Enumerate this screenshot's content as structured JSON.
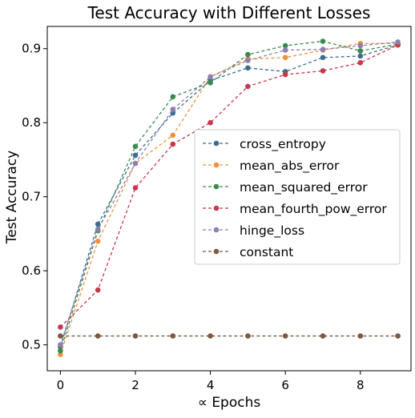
{
  "chart_data": {
    "type": "line",
    "title": "Test Accuracy with Different Losses",
    "xlabel": "∝ Epochs",
    "ylabel": "Test Accuracy",
    "xlim": [
      -0.35,
      9.35
    ],
    "ylim": [
      0.465,
      0.93
    ],
    "xticks": [
      0,
      2,
      4,
      6,
      8
    ],
    "yticks": [
      0.5,
      0.6,
      0.7,
      0.8,
      0.9
    ],
    "grid": false,
    "legend_position": "center-right",
    "x": [
      0,
      1,
      2,
      3,
      4,
      5,
      6,
      7,
      8,
      9
    ],
    "series": [
      {
        "name": "cross_entropy",
        "color": "#3c6e91",
        "values": [
          0.497,
          0.663,
          0.756,
          0.813,
          0.857,
          0.874,
          0.869,
          0.888,
          0.89,
          0.905
        ]
      },
      {
        "name": "mean_abs_error",
        "color": "#f0923c",
        "values": [
          0.487,
          0.64,
          0.745,
          0.783,
          0.862,
          0.886,
          0.888,
          0.898,
          0.907,
          0.907
        ]
      },
      {
        "name": "mean_squared_error",
        "color": "#3a8a4e",
        "values": [
          0.492,
          0.654,
          0.768,
          0.835,
          0.854,
          0.892,
          0.904,
          0.91,
          0.897,
          0.906
        ]
      },
      {
        "name": "mean_fourth_pow_error",
        "color": "#c43a4c",
        "values": [
          0.524,
          0.574,
          0.712,
          0.771,
          0.8,
          0.849,
          0.865,
          0.87,
          0.881,
          0.905
        ]
      },
      {
        "name": "hinge_loss",
        "color": "#8e7fb3",
        "values": [
          0.5,
          0.656,
          0.745,
          0.818,
          0.862,
          0.884,
          0.898,
          0.899,
          0.904,
          0.909
        ]
      },
      {
        "name": "constant",
        "color": "#7a5a44",
        "values": [
          0.512,
          0.512,
          0.512,
          0.512,
          0.512,
          0.512,
          0.512,
          0.512,
          0.512,
          0.512
        ]
      }
    ]
  }
}
